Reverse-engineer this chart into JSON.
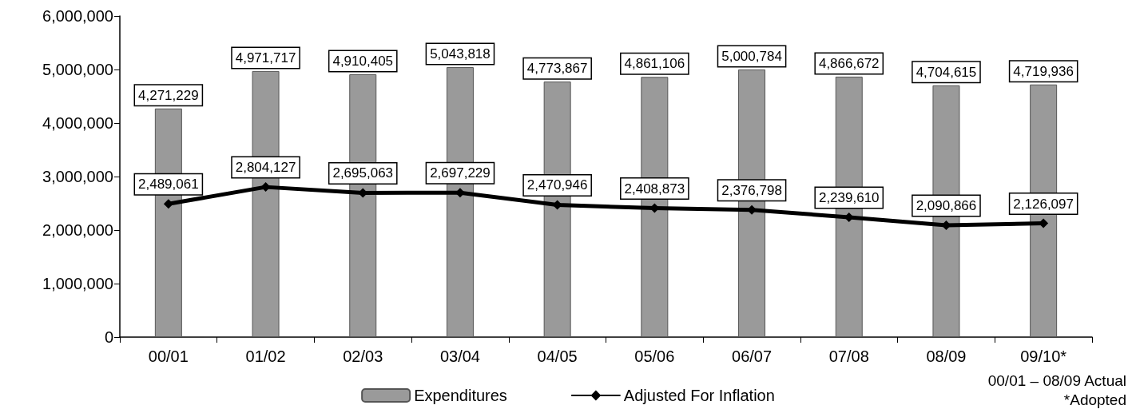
{
  "chart_data": {
    "type": "bar",
    "categories": [
      "00/01",
      "01/02",
      "02/03",
      "03/04",
      "04/05",
      "05/06",
      "06/07",
      "07/08",
      "08/09",
      "09/10*"
    ],
    "series": [
      {
        "name": "Expenditures",
        "color": "#9a9a9a",
        "values": [
          4271229,
          4971717,
          4910405,
          5043818,
          4773867,
          4861106,
          5000784,
          4866672,
          4704615,
          4719936
        ],
        "value_labels": [
          "4,271,229",
          "4,971,717",
          "4,910,405",
          "5,043,818",
          "4,773,867",
          "4,861,106",
          "5,000,784",
          "4,866,672",
          "4,704,615",
          "4,719,936"
        ]
      },
      {
        "name": "Adjusted For Inflation",
        "type": "line",
        "color": "#000000",
        "marker": "diamond",
        "line_style": "solid",
        "values": [
          2489061,
          2804127,
          2695063,
          2697229,
          2470946,
          2408873,
          2376798,
          2239610,
          2090866,
          2126097
        ],
        "value_labels": [
          "2,489,061",
          "2,804,127",
          "2,695,063",
          "2,697,229",
          "2,470,946",
          "2,408,873",
          "2,376,798",
          "2,239,610",
          "2,090,866",
          "2,126,097"
        ]
      }
    ],
    "ylim": [
      0,
      6000000
    ],
    "yticks": [
      0,
      {
        "value": 1000000,
        "label": "1,000,000"
      },
      {
        "value": 2000000,
        "label": "2,000,000"
      },
      {
        "value": 3000000,
        "label": "3,000,000"
      },
      {
        "value": 4000000,
        "label": "4,000,000"
      },
      {
        "value": 5000000,
        "label": "5,000,000"
      },
      {
        "value": 6000000,
        "label": "6,000,000"
      }
    ],
    "grid": false,
    "legend": "bottom",
    "annotations": [
      "00/01 – 08/09 Actual",
      "*Adopted"
    ]
  }
}
